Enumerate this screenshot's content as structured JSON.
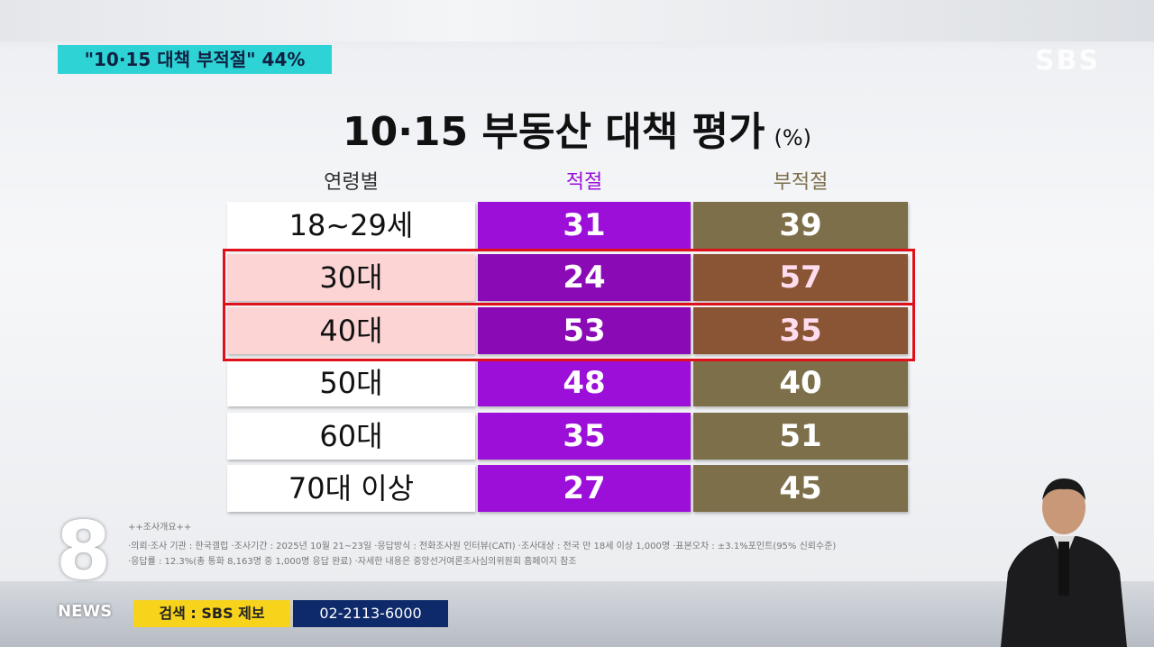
{
  "caption": "\"10·15 대책 부적절\" 44%",
  "logo": "SBS",
  "table": {
    "title": "10·15 부동산 대책 평가",
    "unit": "(%)",
    "columns": [
      "연령별",
      "적절",
      "부적절"
    ],
    "rows": [
      {
        "label": "18~29세",
        "values": [
          31,
          39
        ],
        "highlight": false
      },
      {
        "label": "30대",
        "values": [
          24,
          57
        ],
        "highlight": true
      },
      {
        "label": "40대",
        "values": [
          53,
          35
        ],
        "highlight": true
      },
      {
        "label": "50대",
        "values": [
          48,
          40
        ],
        "highlight": false
      },
      {
        "label": "60대",
        "values": [
          35,
          51
        ],
        "highlight": false
      },
      {
        "label": "70대 이상",
        "values": [
          27,
          45
        ],
        "highlight": false
      }
    ]
  },
  "footer": {
    "notes": [
      "++조사개요++",
      "·의뢰·조사 기관 : 한국갤럽 ·조사기간 : 2025년 10월 21~23일 ·응답방식 : 전화조사원 인터뷰(CATI) ·조사대상 : 전국 만 18세 이상 1,000명 ·표본오차 : ±3.1%포인트(95% 신뢰수준)",
      "·응답률 : 12.3%(총 통화 8,163명 중 1,000명 응답 완료) ·자세한 내용은 중앙선거여론조사심의위원회 홈페이지 참조"
    ]
  },
  "bottom": {
    "channel": "8",
    "news": "NEWS",
    "search": "검색 : SBS 제보",
    "phone": "02-2113-6000"
  }
}
